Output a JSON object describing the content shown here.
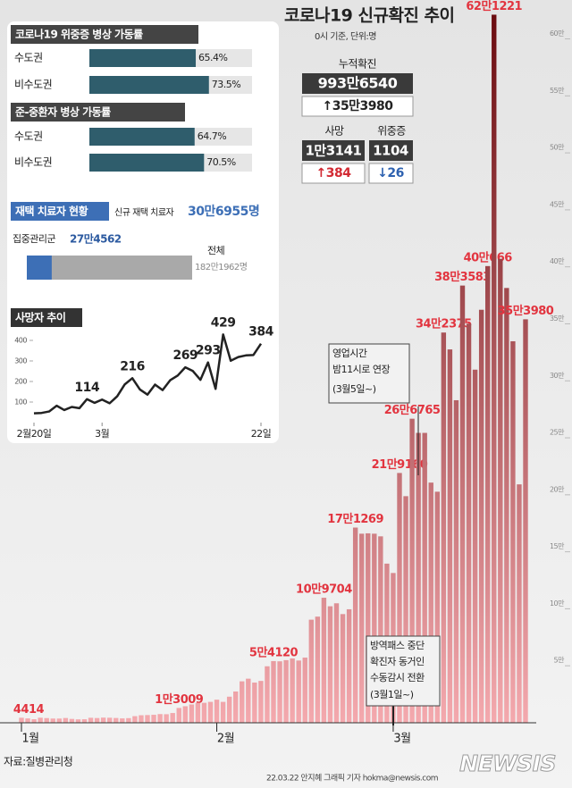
{
  "chart_data": [
    {
      "type": "bar",
      "title": "코로나19 신규확진 추이",
      "subtitle": "0시 기준, 단위:명",
      "categories": [
        "1월",
        null,
        null,
        null,
        null,
        null,
        null,
        null,
        null,
        null,
        null,
        null,
        null,
        null,
        null,
        null,
        null,
        null,
        null,
        null,
        null,
        null,
        null,
        null,
        null,
        null,
        null,
        null,
        null,
        null,
        null,
        "2월",
        null,
        null,
        null,
        null,
        null,
        null,
        null,
        null,
        null,
        null,
        null,
        null,
        null,
        null,
        null,
        null,
        null,
        null,
        null,
        null,
        null,
        null,
        null,
        null,
        null,
        null,
        null,
        "3월",
        null,
        null,
        null,
        null,
        null,
        null,
        null,
        null,
        null,
        null,
        null,
        null,
        null,
        null,
        null,
        null,
        null,
        null,
        null,
        null,
        null
      ],
      "values": [
        4414,
        3832,
        3129,
        4443,
        4126,
        3714,
        3713,
        4194,
        3376,
        3005,
        3094,
        4388,
        4167,
        4542,
        4419,
        4197,
        3858,
        4071,
        5805,
        6603,
        6767,
        7009,
        7630,
        7513,
        8571,
        13009,
        14518,
        16096,
        17542,
        17528,
        18342,
        20270,
        18346,
        22907,
        27443,
        36362,
        38691,
        35286,
        36719,
        49567,
        54120,
        53926,
        54941,
        56431,
        54619,
        57177,
        90443,
        93135,
        109704,
        102211,
        104829,
        95362,
        99573,
        171269,
        165890,
        166209,
        165889,
        163566,
        139626,
        131405,
        219160,
        198803,
        266765,
        254327,
        254327,
        210716,
        202721,
        342375,
        327549,
        282987,
        383583,
        350190,
        309790,
        362338,
        400666,
        621221,
        407017,
        381454,
        334708,
        209169,
        353980
      ],
      "value_labels": [
        "4414",
        null,
        null,
        null,
        null,
        null,
        null,
        null,
        null,
        null,
        null,
        null,
        null,
        null,
        null,
        null,
        null,
        null,
        null,
        null,
        null,
        null,
        null,
        null,
        null,
        "1만3009",
        null,
        null,
        null,
        null,
        null,
        null,
        null,
        null,
        null,
        null,
        null,
        null,
        null,
        null,
        "5만4120",
        null,
        null,
        null,
        null,
        null,
        null,
        null,
        "10만9704",
        null,
        null,
        null,
        null,
        "17만1269",
        null,
        null,
        null,
        null,
        null,
        null,
        "21만9160",
        null,
        "26만6765",
        null,
        null,
        null,
        null,
        "34만2375",
        null,
        null,
        "38만3583",
        null,
        null,
        null,
        "40만666",
        "62만1221",
        null,
        null,
        null,
        null,
        "35만3980"
      ],
      "gradient": [
        "#f4a9ae",
        "#6b0c10"
      ],
      "label_color": "#e2343f",
      "ylim": [
        0,
        620000
      ],
      "yticks": [
        {
          "value": 50000,
          "label": "5만"
        },
        {
          "value": 100000,
          "label": "10만"
        },
        {
          "value": 150000,
          "label": "15만"
        },
        {
          "value": 200000,
          "label": "20만"
        },
        {
          "value": 250000,
          "label": "25만"
        },
        {
          "value": 300000,
          "label": "30만"
        },
        {
          "value": 350000,
          "label": "35만"
        },
        {
          "value": 400000,
          "label": "40만"
        },
        {
          "value": 450000,
          "label": "45만"
        },
        {
          "value": 500000,
          "label": "50만"
        },
        {
          "value": 550000,
          "label": "55만"
        },
        {
          "value": 600000,
          "label": "60만"
        }
      ],
      "annotations": [
        {
          "lines": [
            "영업시간",
            "밤11시로 연장",
            "(3월5일~)"
          ]
        },
        {
          "lines": [
            "방역패스 중단",
            "확진자 동거인",
            "수동감시 전환",
            "(3월1일~)"
          ]
        }
      ]
    },
    {
      "type": "line",
      "title": "사망자 추이",
      "categories": [
        "2월20일",
        null,
        null,
        null,
        null,
        null,
        null,
        null,
        null,
        "3월",
        null,
        null,
        null,
        null,
        null,
        null,
        null,
        null,
        null,
        null,
        null,
        null,
        null,
        null,
        null,
        null,
        null,
        null,
        null,
        null,
        "22일"
      ],
      "values": [
        45,
        47,
        54,
        82,
        61,
        76,
        70,
        114,
        96,
        112,
        94,
        128,
        186,
        216,
        161,
        136,
        185,
        158,
        206,
        229,
        269,
        251,
        208,
        293,
        164,
        429,
        301,
        319,
        327,
        329,
        384
      ],
      "value_labels": [
        null,
        null,
        null,
        null,
        null,
        null,
        null,
        "114",
        null,
        null,
        null,
        null,
        null,
        "216",
        null,
        null,
        null,
        null,
        null,
        null,
        "269",
        null,
        null,
        "293",
        null,
        "429",
        null,
        null,
        null,
        null,
        "384"
      ],
      "color": "#222222",
      "ylim": [
        0,
        450
      ],
      "yticks": [
        100,
        200,
        300,
        400
      ]
    }
  ],
  "summary": {
    "cumulative": {
      "label": "누적확진",
      "value": "993만6540",
      "change": "↑35만3980"
    },
    "deaths": {
      "label": "사망",
      "value": "1만3141",
      "change": "↑384"
    },
    "critical": {
      "label": "위중증",
      "value": "1104",
      "change": "↓26"
    }
  },
  "beds": [
    {
      "title": "코로나19 위중증 병상 가동률",
      "rows": [
        {
          "region": "수도권",
          "value": 65.4,
          "label": "65.4%"
        },
        {
          "region": "비수도권",
          "value": 73.5,
          "label": "73.5%"
        }
      ]
    },
    {
      "title": "준-중환자 병상 가동률",
      "rows": [
        {
          "region": "수도권",
          "value": 64.7,
          "label": "64.7%"
        },
        {
          "region": "비수도권",
          "value": 70.5,
          "label": "70.5%"
        }
      ]
    }
  ],
  "home": {
    "title": "재택 치료자 현황",
    "new_label": "신규 재택 치료자",
    "new_value": "30만6955명",
    "managed_label": "집중관리군",
    "managed": 274562,
    "managed_label_value": "27만4562",
    "total_label": "전체",
    "total": 1821962,
    "total_label_value": "182만1962명"
  },
  "footer": {
    "source": "자료:질병관리청",
    "credit": "22.03.22 안지혜 그래픽 기자 hokma@newsis.com",
    "logo": "NEWSIS"
  }
}
